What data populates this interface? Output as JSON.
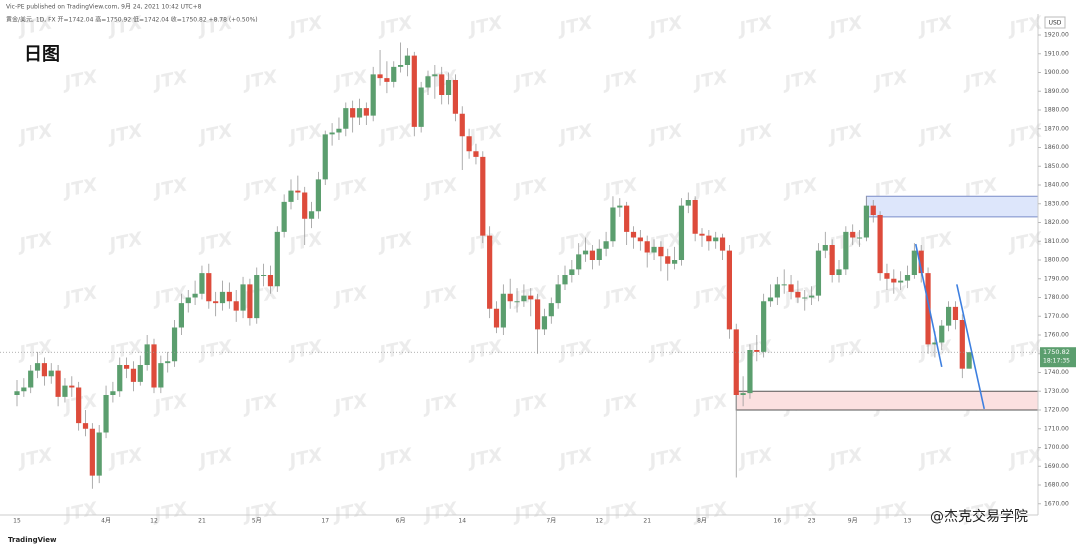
{
  "header": {
    "author_line": "Vic-PE published on TradingView.com, 9月 24, 2021 10:42 UTC+8",
    "symbol_line": "黄金/美元, 1D, FX 开=1742.04 高=1750.92 低=1742.04 收=1750.82 +8.78 (+0.50%)"
  },
  "chart_data": {
    "type": "candlestick",
    "title": "日图",
    "currency": "USD",
    "countdown": "18:17:35",
    "up_color": "#5b9e6e",
    "down_color": "#dd4b3b",
    "categories": [
      "15",
      null,
      null,
      null,
      null,
      null,
      null,
      null,
      null,
      null,
      null,
      null,
      null,
      "4月",
      null,
      null,
      null,
      null,
      null,
      null,
      "12",
      null,
      null,
      null,
      null,
      null,
      null,
      "21",
      null,
      null,
      null,
      null,
      null,
      null,
      null,
      "5月",
      null,
      null,
      null,
      null,
      null,
      null,
      null,
      null,
      null,
      "17",
      null,
      null,
      null,
      null,
      null,
      null,
      null,
      null,
      null,
      null,
      "6月",
      null,
      null,
      null,
      null,
      null,
      null,
      null,
      null,
      "14",
      null,
      null,
      null,
      null,
      null,
      null,
      null,
      null,
      null,
      null,
      null,
      null,
      "7月",
      null,
      null,
      null,
      null,
      null,
      null,
      "12",
      null,
      null,
      null,
      null,
      null,
      null,
      "21",
      null,
      null,
      null,
      null,
      null,
      null,
      null,
      "8月",
      null,
      null,
      null,
      null,
      null,
      null,
      null,
      null,
      null,
      null,
      "16",
      null,
      null,
      null,
      null,
      "23",
      null,
      null,
      null,
      null,
      null,
      "9月",
      null,
      null,
      null,
      null,
      null,
      null,
      null,
      "13",
      null,
      null,
      null,
      null,
      null,
      null,
      null,
      null,
      null
    ],
    "ohlc": [
      [
        1728,
        1736,
        1722,
        1730
      ],
      [
        1730,
        1737,
        1727,
        1732
      ],
      [
        1732,
        1744,
        1729,
        1741
      ],
      [
        1741,
        1751,
        1737,
        1745
      ],
      [
        1745,
        1748,
        1733,
        1738
      ],
      [
        1738,
        1745,
        1734,
        1741
      ],
      [
        1741,
        1744,
        1722,
        1727
      ],
      [
        1727,
        1737,
        1724,
        1733
      ],
      [
        1733,
        1738,
        1727,
        1732
      ],
      [
        1732,
        1735,
        1709,
        1713
      ],
      [
        1713,
        1720,
        1706,
        1710
      ],
      [
        1710,
        1713,
        1678,
        1685
      ],
      [
        1685,
        1712,
        1681,
        1708
      ],
      [
        1708,
        1733,
        1705,
        1728
      ],
      [
        1728,
        1735,
        1724,
        1730
      ],
      [
        1730,
        1748,
        1727,
        1744
      ],
      [
        1744,
        1748,
        1737,
        1742
      ],
      [
        1742,
        1746,
        1730,
        1735
      ],
      [
        1735,
        1749,
        1733,
        1744
      ],
      [
        1744,
        1760,
        1741,
        1755
      ],
      [
        1755,
        1758,
        1729,
        1732
      ],
      [
        1732,
        1749,
        1729,
        1745
      ],
      [
        1745,
        1751,
        1740,
        1746
      ],
      [
        1746,
        1768,
        1743,
        1764
      ],
      [
        1764,
        1782,
        1760,
        1777
      ],
      [
        1777,
        1784,
        1772,
        1780
      ],
      [
        1780,
        1789,
        1776,
        1782
      ],
      [
        1782,
        1797,
        1779,
        1793
      ],
      [
        1793,
        1798,
        1774,
        1778
      ],
      [
        1778,
        1783,
        1770,
        1777
      ],
      [
        1777,
        1789,
        1773,
        1783
      ],
      [
        1783,
        1788,
        1774,
        1778
      ],
      [
        1778,
        1784,
        1767,
        1773
      ],
      [
        1773,
        1791,
        1769,
        1787
      ],
      [
        1787,
        1790,
        1765,
        1769
      ],
      [
        1769,
        1796,
        1766,
        1792
      ],
      [
        1792,
        1798,
        1786,
        1792
      ],
      [
        1792,
        1797,
        1782,
        1786
      ],
      [
        1786,
        1818,
        1783,
        1815
      ],
      [
        1815,
        1835,
        1812,
        1831
      ],
      [
        1831,
        1843,
        1827,
        1837
      ],
      [
        1837,
        1845,
        1832,
        1836
      ],
      [
        1836,
        1839,
        1808,
        1822
      ],
      [
        1822,
        1831,
        1817,
        1826
      ],
      [
        1826,
        1847,
        1822,
        1843
      ],
      [
        1843,
        1869,
        1840,
        1867
      ],
      [
        1867,
        1873,
        1861,
        1868
      ],
      [
        1868,
        1876,
        1864,
        1870
      ],
      [
        1870,
        1884,
        1866,
        1881
      ],
      [
        1881,
        1885,
        1868,
        1876
      ],
      [
        1876,
        1886,
        1872,
        1881
      ],
      [
        1881,
        1884,
        1872,
        1877
      ],
      [
        1877,
        1903,
        1874,
        1899
      ],
      [
        1899,
        1912,
        1893,
        1897
      ],
      [
        1897,
        1906,
        1889,
        1895
      ],
      [
        1895,
        1906,
        1892,
        1903
      ],
      [
        1903,
        1916,
        1900,
        1904
      ],
      [
        1904,
        1913,
        1898,
        1909
      ],
      [
        1909,
        1911,
        1866,
        1871
      ],
      [
        1871,
        1895,
        1868,
        1892
      ],
      [
        1892,
        1901,
        1888,
        1898
      ],
      [
        1898,
        1904,
        1886,
        1899
      ],
      [
        1899,
        1903,
        1883,
        1888
      ],
      [
        1888,
        1900,
        1883,
        1896
      ],
      [
        1896,
        1899,
        1874,
        1878
      ],
      [
        1878,
        1882,
        1848,
        1866
      ],
      [
        1866,
        1870,
        1854,
        1858
      ],
      [
        1858,
        1862,
        1851,
        1855
      ],
      [
        1855,
        1858,
        1809,
        1813
      ],
      [
        1813,
        1818,
        1769,
        1774
      ],
      [
        1774,
        1778,
        1761,
        1764
      ],
      [
        1764,
        1787,
        1760,
        1782
      ],
      [
        1782,
        1790,
        1774,
        1778
      ],
      [
        1778,
        1785,
        1772,
        1778
      ],
      [
        1778,
        1787,
        1775,
        1781
      ],
      [
        1781,
        1785,
        1770,
        1779
      ],
      [
        1779,
        1782,
        1750,
        1763
      ],
      [
        1763,
        1774,
        1760,
        1770
      ],
      [
        1770,
        1780,
        1766,
        1777
      ],
      [
        1777,
        1792,
        1774,
        1787
      ],
      [
        1787,
        1797,
        1784,
        1792
      ],
      [
        1792,
        1800,
        1788,
        1795
      ],
      [
        1795,
        1809,
        1792,
        1803
      ],
      [
        1803,
        1812,
        1799,
        1805
      ],
      [
        1805,
        1808,
        1795,
        1800
      ],
      [
        1800,
        1811,
        1797,
        1806
      ],
      [
        1806,
        1815,
        1802,
        1810
      ],
      [
        1810,
        1834,
        1807,
        1828
      ],
      [
        1828,
        1833,
        1823,
        1829
      ],
      [
        1829,
        1831,
        1808,
        1815
      ],
      [
        1815,
        1818,
        1806,
        1812
      ],
      [
        1812,
        1816,
        1805,
        1810
      ],
      [
        1810,
        1813,
        1796,
        1804
      ],
      [
        1804,
        1811,
        1800,
        1807
      ],
      [
        1807,
        1810,
        1794,
        1802
      ],
      [
        1802,
        1806,
        1789,
        1798
      ],
      [
        1798,
        1807,
        1795,
        1800
      ],
      [
        1800,
        1833,
        1797,
        1829
      ],
      [
        1829,
        1836,
        1825,
        1832
      ],
      [
        1832,
        1834,
        1810,
        1814
      ],
      [
        1814,
        1817,
        1807,
        1813
      ],
      [
        1813,
        1816,
        1805,
        1810
      ],
      [
        1810,
        1815,
        1806,
        1812
      ],
      [
        1812,
        1814,
        1800,
        1805
      ],
      [
        1805,
        1808,
        1758,
        1763
      ],
      [
        1763,
        1766,
        1684,
        1728
      ],
      [
        1728,
        1738,
        1722,
        1729
      ],
      [
        1729,
        1755,
        1726,
        1752
      ],
      [
        1752,
        1760,
        1746,
        1751
      ],
      [
        1751,
        1782,
        1748,
        1778
      ],
      [
        1778,
        1787,
        1775,
        1780
      ],
      [
        1780,
        1791,
        1776,
        1787
      ],
      [
        1787,
        1795,
        1782,
        1787
      ],
      [
        1787,
        1792,
        1779,
        1783
      ],
      [
        1783,
        1789,
        1777,
        1780
      ],
      [
        1780,
        1784,
        1773,
        1780
      ],
      [
        1780,
        1786,
        1776,
        1781
      ],
      [
        1781,
        1809,
        1778,
        1805
      ],
      [
        1805,
        1815,
        1801,
        1808
      ],
      [
        1808,
        1811,
        1788,
        1792
      ],
      [
        1792,
        1800,
        1788,
        1795
      ],
      [
        1795,
        1818,
        1792,
        1815
      ],
      [
        1815,
        1819,
        1808,
        1812
      ],
      [
        1812,
        1816,
        1807,
        1812
      ],
      [
        1812,
        1834,
        1810,
        1829
      ],
      [
        1829,
        1832,
        1820,
        1824
      ],
      [
        1824,
        1826,
        1789,
        1793
      ],
      [
        1793,
        1798,
        1784,
        1790
      ],
      [
        1790,
        1795,
        1782,
        1788
      ],
      [
        1788,
        1794,
        1784,
        1789
      ],
      [
        1789,
        1797,
        1785,
        1792
      ],
      [
        1792,
        1809,
        1790,
        1805
      ],
      [
        1805,
        1808,
        1788,
        1793
      ],
      [
        1793,
        1796,
        1750,
        1755
      ],
      [
        1755,
        1762,
        1748,
        1756
      ],
      [
        1756,
        1768,
        1752,
        1765
      ],
      [
        1765,
        1778,
        1762,
        1775
      ],
      [
        1775,
        1778,
        1763,
        1768
      ],
      [
        1768,
        1771,
        1737,
        1742.04
      ],
      [
        1742.04,
        1750.92,
        1742.04,
        1750.82
      ]
    ],
    "ylim": [
      1664,
      1928
    ],
    "yticks": [
      {
        "value": 1670,
        "label": "1670.00"
      },
      {
        "value": 1680,
        "label": "1680.00"
      },
      {
        "value": 1690,
        "label": "1690.00"
      },
      {
        "value": 1700,
        "label": "1700.00"
      },
      {
        "value": 1710,
        "label": "1710.00"
      },
      {
        "value": 1720,
        "label": "1720.00"
      },
      {
        "value": 1730,
        "label": "1730.00"
      },
      {
        "value": 1740,
        "label": "1740.00"
      },
      {
        "value": 1750,
        "label": "1750.00"
      },
      {
        "value": 1760,
        "label": "1760.00"
      },
      {
        "value": 1770,
        "label": "1770.00"
      },
      {
        "value": 1780,
        "label": "1780.00"
      },
      {
        "value": 1790,
        "label": "1790.00"
      },
      {
        "value": 1800,
        "label": "1800.00"
      },
      {
        "value": 1810,
        "label": "1810.00"
      },
      {
        "value": 1820,
        "label": "1820.00"
      },
      {
        "value": 1830,
        "label": "1830.00"
      },
      {
        "value": 1840,
        "label": "1840.00"
      },
      {
        "value": 1850,
        "label": "1850.00"
      },
      {
        "value": 1860,
        "label": "1860.00"
      },
      {
        "value": 1870,
        "label": "1870.00"
      },
      {
        "value": 1880,
        "label": "1880.00"
      },
      {
        "value": 1890,
        "label": "1890.00"
      },
      {
        "value": 1900,
        "label": "1900.00"
      },
      {
        "value": 1910,
        "label": "1910.00"
      },
      {
        "value": 1920,
        "label": "1920.00"
      }
    ],
    "zones": [
      {
        "range": [
          1823,
          1834
        ],
        "start": 124,
        "color": "#dde6fb",
        "border": "#7a8cc8"
      },
      {
        "range": [
          1720,
          1730
        ],
        "start": 105,
        "color": "#fbe0e0",
        "border": "#555555"
      }
    ],
    "trend_lines": [
      {
        "points": [
          [
            131.2,
            1808.5
          ],
          [
            135,
            1743
          ]
        ],
        "color": "#3d7fe0"
      },
      {
        "points": [
          [
            137.2,
            1787
          ],
          [
            141.2,
            1720.6
          ]
        ],
        "color": "#3d7fe0"
      }
    ]
  },
  "watermark": "JTX",
  "footer": {
    "logo": "TradingView",
    "credit": "@杰克交易学院"
  }
}
